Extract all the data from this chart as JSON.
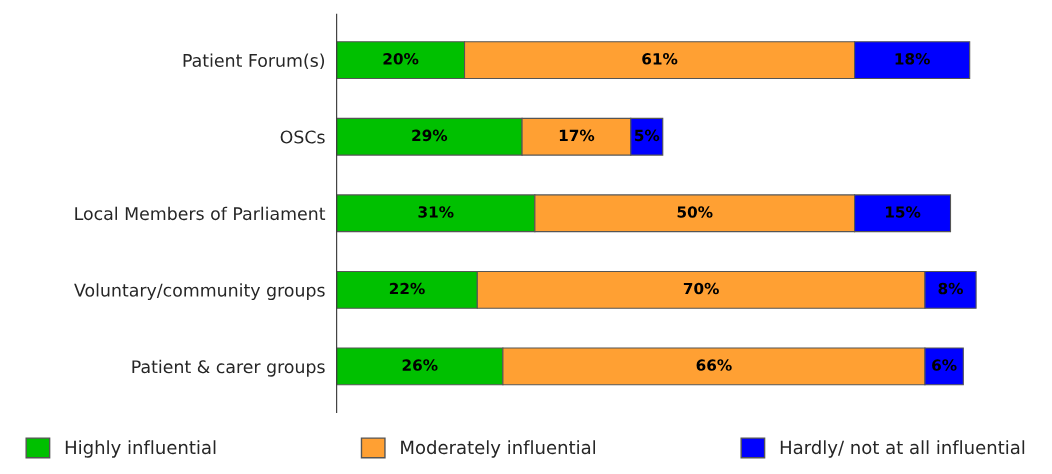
{
  "chart_data": {
    "type": "bar",
    "orientation": "horizontal",
    "stacked": true,
    "categories": [
      "Patient Forum(s)",
      "OSCs",
      "Local Members of Parliament",
      "Voluntary/community groups",
      "Patient & carer groups"
    ],
    "series": [
      {
        "name": "Highly influential",
        "color": "#00c000",
        "values": [
          20,
          29,
          31,
          22,
          26
        ],
        "value_labels": [
          "20%",
          "29%",
          "31%",
          "22%",
          "26%"
        ]
      },
      {
        "name": "Moderately influential",
        "color": "#ffa033",
        "values": [
          61,
          17,
          50,
          70,
          66
        ],
        "value_labels": [
          "61%",
          "17%",
          "50%",
          "70%",
          "66%"
        ]
      },
      {
        "name": "Hardly/ not at all influential",
        "color": "#0000ff",
        "values": [
          18,
          5,
          15,
          8,
          6
        ],
        "value_labels": [
          "18%",
          "5%",
          "15%",
          "8%",
          "6%"
        ]
      }
    ],
    "legend": "bottom",
    "grid": false
  }
}
